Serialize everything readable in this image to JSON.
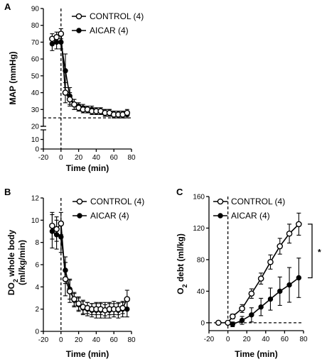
{
  "chart_data": [
    {
      "id": "A",
      "type": "line",
      "panel_label": "A",
      "xlabel": "Time (min)",
      "ylabel": "MAP (mmHg)",
      "ylabel_sub": "",
      "ylabel_rest": "",
      "xlim": [
        -20,
        80
      ],
      "xticks": [
        -20,
        0,
        20,
        40,
        60,
        80
      ],
      "ylim": [
        0,
        90
      ],
      "yticks": [
        0,
        10,
        20,
        30,
        40,
        50,
        60,
        70,
        80,
        90
      ],
      "y_axis_break": [
        20,
        25
      ],
      "vline_x": 0,
      "hline_y": 25,
      "hline_x_range": [
        -20,
        80
      ],
      "legend_position": "top-right",
      "series": [
        {
          "name": "CONTROL (4)",
          "marker": "open-circle",
          "x": [
            -10,
            -5,
            0,
            5,
            10,
            15,
            20,
            25,
            30,
            35,
            40,
            45,
            50,
            55,
            60,
            65,
            70,
            75
          ],
          "y": [
            72,
            73,
            75,
            40,
            36,
            33,
            31,
            30,
            30,
            29,
            29,
            29,
            28,
            28,
            27,
            27,
            27,
            28
          ],
          "err": [
            3,
            3,
            3,
            6,
            4,
            3,
            2,
            2,
            2,
            2,
            2,
            2,
            2,
            2,
            2,
            2,
            2,
            2
          ]
        },
        {
          "name": "AICAR (4)",
          "marker": "filled-circle",
          "x": [
            -10,
            -5,
            0,
            5,
            10,
            15,
            20,
            25,
            30,
            35,
            40,
            45,
            50,
            55,
            60,
            65,
            70,
            75
          ],
          "y": [
            69,
            70,
            70,
            53,
            38,
            33,
            32,
            31,
            30,
            30,
            29,
            29,
            28,
            28,
            27,
            27,
            27,
            27
          ],
          "err": [
            4,
            4,
            4,
            10,
            5,
            3,
            2,
            2,
            2,
            2,
            2,
            2,
            2,
            2,
            2,
            2,
            2,
            2
          ]
        }
      ]
    },
    {
      "id": "B",
      "type": "line",
      "panel_label": "B",
      "xlabel": "Time (min)",
      "ylabel": "",
      "ylabel_main": "DO",
      "ylabel_sub": "2",
      "ylabel_rest": " whole body",
      "ylabel_line2": "(ml/kg/min)",
      "xlim": [
        -20,
        80
      ],
      "xticks": [
        -20,
        0,
        20,
        40,
        60,
        80
      ],
      "ylim": [
        0,
        12
      ],
      "yticks": [
        0,
        2,
        4,
        6,
        8,
        10,
        12
      ],
      "vline_x": 0,
      "legend_position": "top-right",
      "series": [
        {
          "name": "CONTROL (4)",
          "marker": "open-circle",
          "x": [
            -10,
            -5,
            0,
            5,
            10,
            15,
            20,
            25,
            30,
            35,
            40,
            45,
            50,
            55,
            60,
            65,
            70,
            75
          ],
          "y": [
            9.5,
            9.2,
            9.7,
            4.7,
            3.6,
            2.9,
            2.5,
            2.2,
            2.1,
            2.0,
            2.0,
            2.0,
            1.9,
            2.0,
            2.0,
            2.0,
            2.1,
            2.9
          ],
          "err": [
            1.2,
            1.1,
            1.0,
            1.5,
            1.0,
            0.6,
            0.6,
            0.6,
            0.5,
            0.5,
            0.5,
            0.5,
            0.5,
            0.5,
            0.5,
            0.5,
            0.5,
            0.8
          ]
        },
        {
          "name": "AICAR (4)",
          "marker": "filled-circle",
          "x": [
            -10,
            -5,
            0,
            5,
            10,
            15,
            20,
            25,
            30,
            35,
            40,
            45,
            50,
            55,
            60,
            65,
            70,
            75
          ],
          "y": [
            9.0,
            8.7,
            8.5,
            5.5,
            3.8,
            2.8,
            2.4,
            2.1,
            2.0,
            1.9,
            1.9,
            1.9,
            1.9,
            1.9,
            2.0,
            1.9,
            2.0,
            2.0
          ],
          "err": [
            1.5,
            1.3,
            1.4,
            1.2,
            0.9,
            0.6,
            0.6,
            0.6,
            0.6,
            0.6,
            0.7,
            0.7,
            0.7,
            0.7,
            0.7,
            0.7,
            0.7,
            0.7
          ]
        }
      ]
    },
    {
      "id": "C",
      "type": "line",
      "panel_label": "C",
      "xlabel": "Time (min)",
      "ylabel": "",
      "ylabel_main": "O",
      "ylabel_sub": "2",
      "ylabel_rest": " debt (ml/kg)",
      "xlim": [
        -20,
        80
      ],
      "xticks": [
        -20,
        0,
        20,
        40,
        60,
        80
      ],
      "ylim": [
        -10,
        160
      ],
      "yticks": [
        0,
        40,
        80,
        120,
        160
      ],
      "vline_x": 0,
      "hline_y": 0,
      "hline_x_range": [
        60,
        80
      ],
      "legend_position": "top-right",
      "significance": "*",
      "series": [
        {
          "name": "CONTROL (4)",
          "marker": "open-circle",
          "x": [
            -10,
            0,
            5,
            15,
            25,
            35,
            45,
            55,
            65,
            75
          ],
          "y": [
            0,
            0,
            8,
            18,
            37,
            56,
            77,
            97,
            113,
            125
          ],
          "err": [
            0,
            0,
            3,
            5,
            6,
            7,
            9,
            10,
            12,
            14
          ]
        },
        {
          "name": "AICAR (4)",
          "marker": "filled-circle",
          "x": [
            5,
            15,
            25,
            35,
            45,
            55,
            65,
            75
          ],
          "y": [
            -2,
            3,
            10,
            20,
            30,
            40,
            48,
            57
          ],
          "err": [
            3,
            5,
            9,
            11,
            14,
            18,
            22,
            25
          ]
        }
      ]
    }
  ]
}
